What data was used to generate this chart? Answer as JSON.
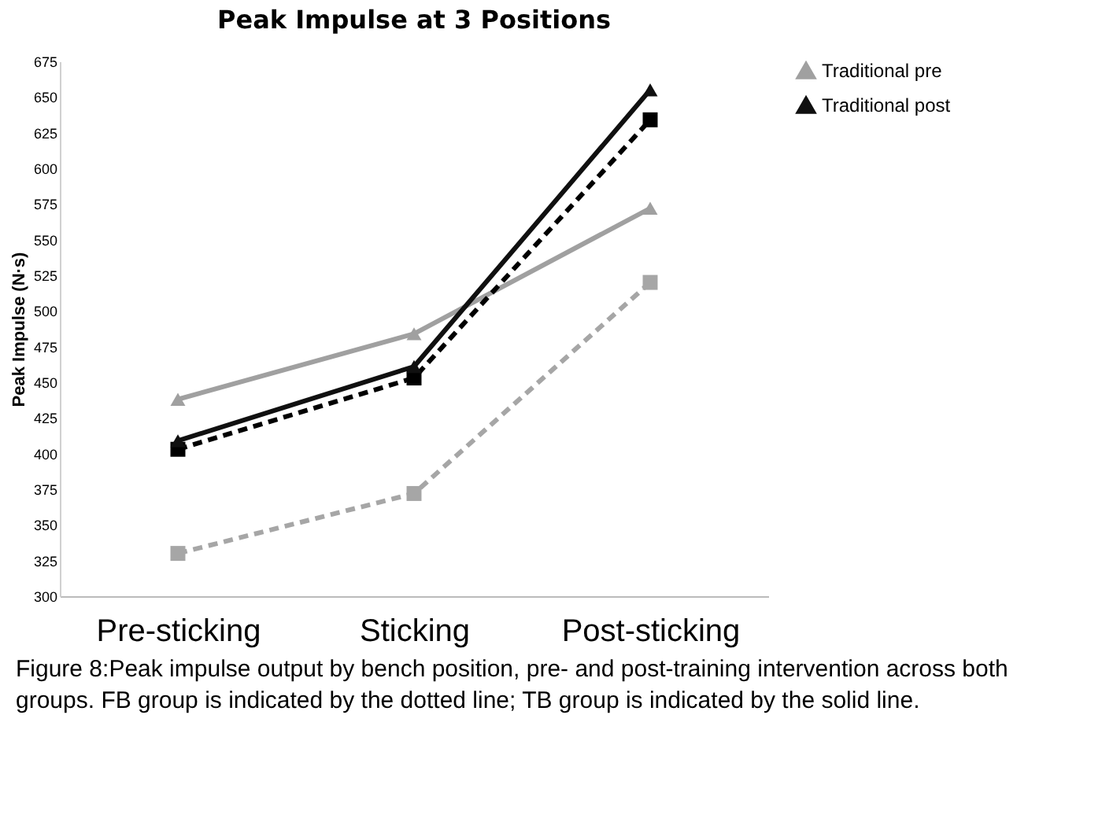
{
  "chart_data": {
    "type": "line",
    "title": "Peak Impulse at 3 Positions",
    "ylabel": "Peak Impulse (N·s)",
    "categories": [
      "Pre-sticking",
      "Sticking",
      "Post-sticking"
    ],
    "series": [
      {
        "color": "#a6a6a6",
        "marker": "square",
        "line_style": "dashed",
        "values": [
          330,
          372,
          520
        ]
      },
      {
        "name": "Traditional pre",
        "color": "#a0a0a0",
        "marker": "triangle",
        "line_style": "solid",
        "values": [
          438,
          484,
          572
        ]
      },
      {
        "color": "#000000",
        "marker": "square",
        "line_style": "dashed",
        "values": [
          403,
          453,
          634
        ]
      },
      {
        "name": "Traditional post",
        "color": "#101010",
        "marker": "triangle",
        "line_style": "solid",
        "values": [
          409,
          461,
          655
        ]
      }
    ],
    "ylim": [
      300,
      675
    ],
    "yticks": [
      300,
      325,
      350,
      375,
      400,
      425,
      450,
      475,
      500,
      525,
      550,
      575,
      600,
      625,
      650,
      675
    ],
    "grid": false,
    "legend": "right",
    "annotations": [
      "Figure 8:Peak impulse output by bench position, pre- and post-training intervention across both groups. FB group is indicated by the dotted line; TB group is indicated by the solid line."
    ]
  }
}
